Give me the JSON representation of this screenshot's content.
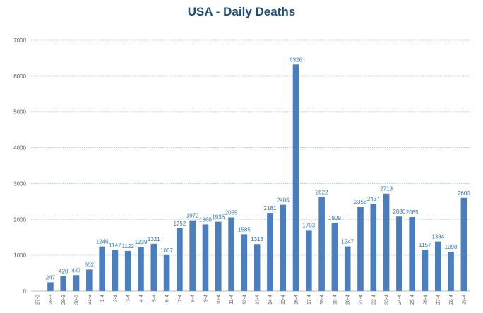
{
  "chart_data": {
    "type": "bar",
    "title": "USA - Daily Deaths",
    "xlabel": "",
    "ylabel": "",
    "ylim": [
      0,
      7000
    ],
    "yticks": [
      0,
      1000,
      2000,
      3000,
      4000,
      5000,
      6000,
      7000
    ],
    "grid": true,
    "legend": "none",
    "categories": [
      "27-3",
      "28-3",
      "29-3",
      "30-3",
      "31-3",
      "1-4",
      "2-4",
      "3-4",
      "4-4",
      "5-4",
      "6-4",
      "7-4",
      "8-4",
      "9-4",
      "10-4",
      "11-4",
      "12-4",
      "13-4",
      "14-4",
      "15-4",
      "16-4",
      "17-4",
      "18-4",
      "19-4",
      "20-4",
      "21-4",
      "22-4",
      "23-4",
      "24-4",
      "25-4",
      "26-4",
      "27-4",
      "28-4",
      "29-4"
    ],
    "values": [
      0,
      247,
      420,
      447,
      602,
      1246,
      1147,
      1122,
      1239,
      1321,
      1007,
      1752,
      1972,
      1860,
      1935,
      2055,
      1585,
      1313,
      2181,
      2406,
      6326,
      1703,
      2622,
      1909,
      1247,
      2358,
      2437,
      2719,
      2080,
      2065,
      1157,
      1384,
      1098,
      2600
    ],
    "data_labels": [
      "",
      "247",
      "420",
      "447",
      "602",
      "1246",
      "1147",
      "1122",
      "1239",
      "1321",
      "1007",
      "1752",
      "1972",
      "1860",
      "1935",
      "2055",
      "1585",
      "1313",
      "2181",
      "2406",
      "6326",
      "1703",
      "2622",
      "1909",
      "1247",
      "2358",
      "2437",
      "2719",
      "2080",
      "2065",
      "1157",
      "1384",
      "1098",
      "2600"
    ],
    "colors": {
      "bar": "#4a7ebf",
      "title": "#1f4e79",
      "data_label": "#2e75b6",
      "grid": "#a6bfd9",
      "axis": "#bfbfbf"
    }
  }
}
